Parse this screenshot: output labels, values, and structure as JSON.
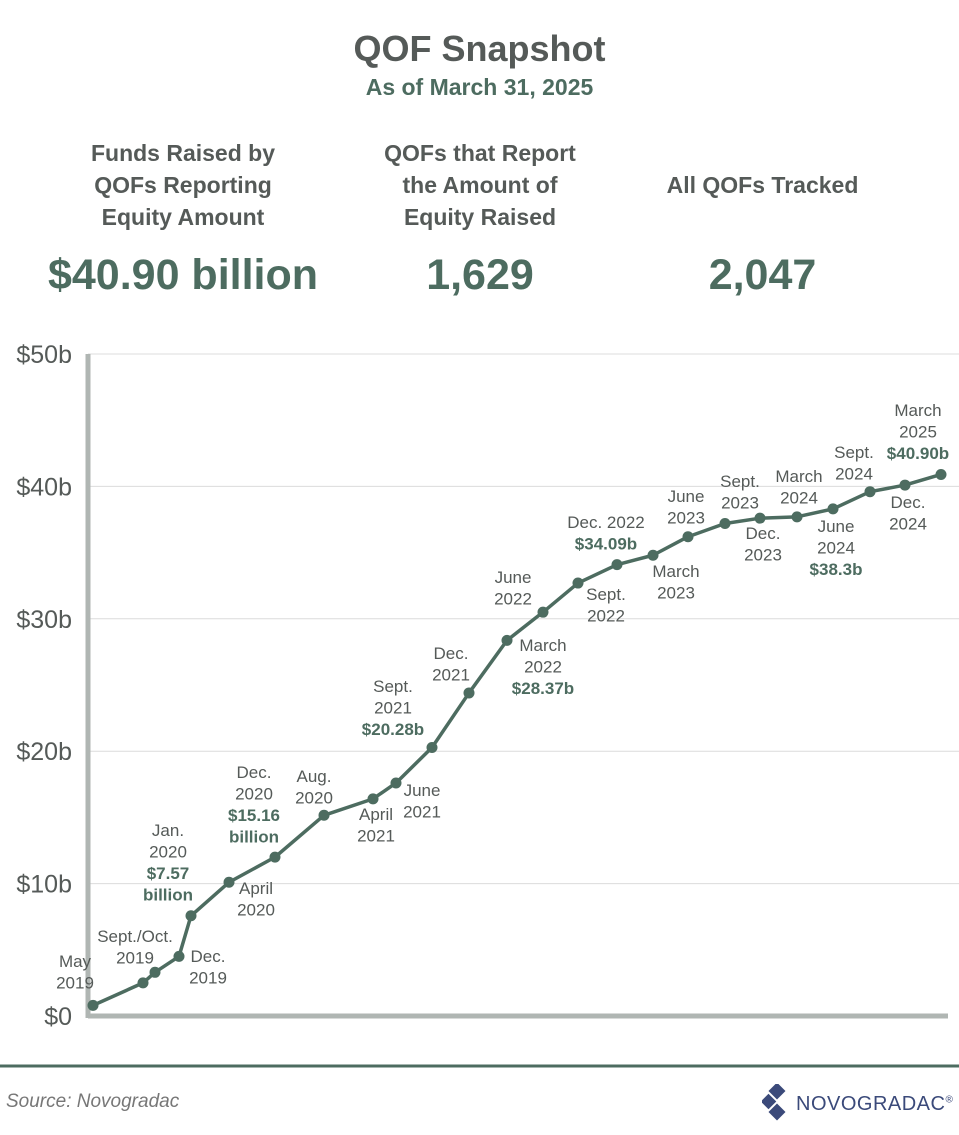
{
  "title": "QOF Snapshot",
  "subtitle": "As of March 31, 2025",
  "stats": [
    {
      "label": [
        "Funds Raised by",
        "QOFs Reporting",
        "Equity Amount"
      ],
      "value": "$40.90 billion"
    },
    {
      "label": [
        "QOFs that Report",
        "the Amount of",
        "Equity Raised"
      ],
      "value": "1,629"
    },
    {
      "label": [
        "All QOFs Tracked"
      ],
      "value": "2,047"
    }
  ],
  "source": "Source: Novogradac",
  "logo": {
    "text": "NOVOGRADAC",
    "mark": "®"
  },
  "colors": {
    "line": "#4d6c60",
    "text": "#555a58",
    "axis": "#b0b6b3",
    "grid": "#dcdcdc",
    "logo": "#3b4a7a"
  },
  "chart_data": {
    "type": "line",
    "title": "",
    "xlabel": "",
    "ylabel": "",
    "ylim": [
      0,
      50
    ],
    "yticks": [
      0,
      10,
      20,
      30,
      40,
      50
    ],
    "ytick_labels": [
      "$0",
      "$10b",
      "$20b",
      "$30b",
      "$40b",
      "$50b"
    ],
    "grid": true,
    "series": [
      {
        "values": [
          0.8,
          2.5,
          3.3,
          4.5,
          7.57,
          10.1,
          12.0,
          15.16,
          16.4,
          17.6,
          20.28,
          24.4,
          28.37,
          30.5,
          32.7,
          34.09,
          34.8,
          36.2,
          37.2,
          37.6,
          37.7,
          38.3,
          39.6,
          40.1,
          40.9
        ]
      }
    ],
    "annotations": [
      {
        "lines": [
          "May",
          "2019"
        ],
        "bold": []
      },
      {
        "lines": [
          "Sept./Oct.",
          "2019"
        ],
        "bold": []
      },
      {
        "lines": [],
        "bold": []
      },
      {
        "lines": [
          "Dec.",
          "2019"
        ],
        "bold": []
      },
      {
        "lines": [
          "Jan.",
          "2020"
        ],
        "bold": [
          "$7.57",
          "billion"
        ]
      },
      {
        "lines": [
          "April",
          "2020"
        ],
        "bold": []
      },
      {
        "lines": [
          "Dec.",
          "2020"
        ],
        "bold": [
          "$15.16",
          "billion"
        ]
      },
      {
        "lines": [
          "Aug.",
          "2020"
        ],
        "bold": []
      },
      {
        "lines": [
          "April",
          "2021"
        ],
        "bold": []
      },
      {
        "lines": [
          "June",
          "2021"
        ],
        "bold": []
      },
      {
        "lines": [
          "Sept.",
          "2021"
        ],
        "bold": [
          "$20.28b"
        ]
      },
      {
        "lines": [
          "Dec.",
          "2021"
        ],
        "bold": []
      },
      {
        "lines": [
          "March",
          "2022"
        ],
        "bold": [
          "$28.37b"
        ]
      },
      {
        "lines": [
          "June",
          "2022"
        ],
        "bold": []
      },
      {
        "lines": [
          "Sept.",
          "2022"
        ],
        "bold": []
      },
      {
        "lines": [
          "Dec. 2022"
        ],
        "bold": [
          "$34.09b"
        ]
      },
      {
        "lines": [
          "March",
          "2023"
        ],
        "bold": []
      },
      {
        "lines": [
          "June",
          "2023"
        ],
        "bold": []
      },
      {
        "lines": [
          "Sept.",
          "2023"
        ],
        "bold": []
      },
      {
        "lines": [
          "Dec.",
          "2023"
        ],
        "bold": []
      },
      {
        "lines": [
          "March",
          "2024"
        ],
        "bold": []
      },
      {
        "lines": [
          "June",
          "2024"
        ],
        "bold": [
          "$38.3b"
        ]
      },
      {
        "lines": [
          "Sept.",
          "2024"
        ],
        "bold": []
      },
      {
        "lines": [
          "Dec.",
          "2024"
        ],
        "bold": []
      },
      {
        "lines": [
          "March",
          "2025"
        ],
        "bold": [
          "$40.90b"
        ]
      }
    ]
  }
}
